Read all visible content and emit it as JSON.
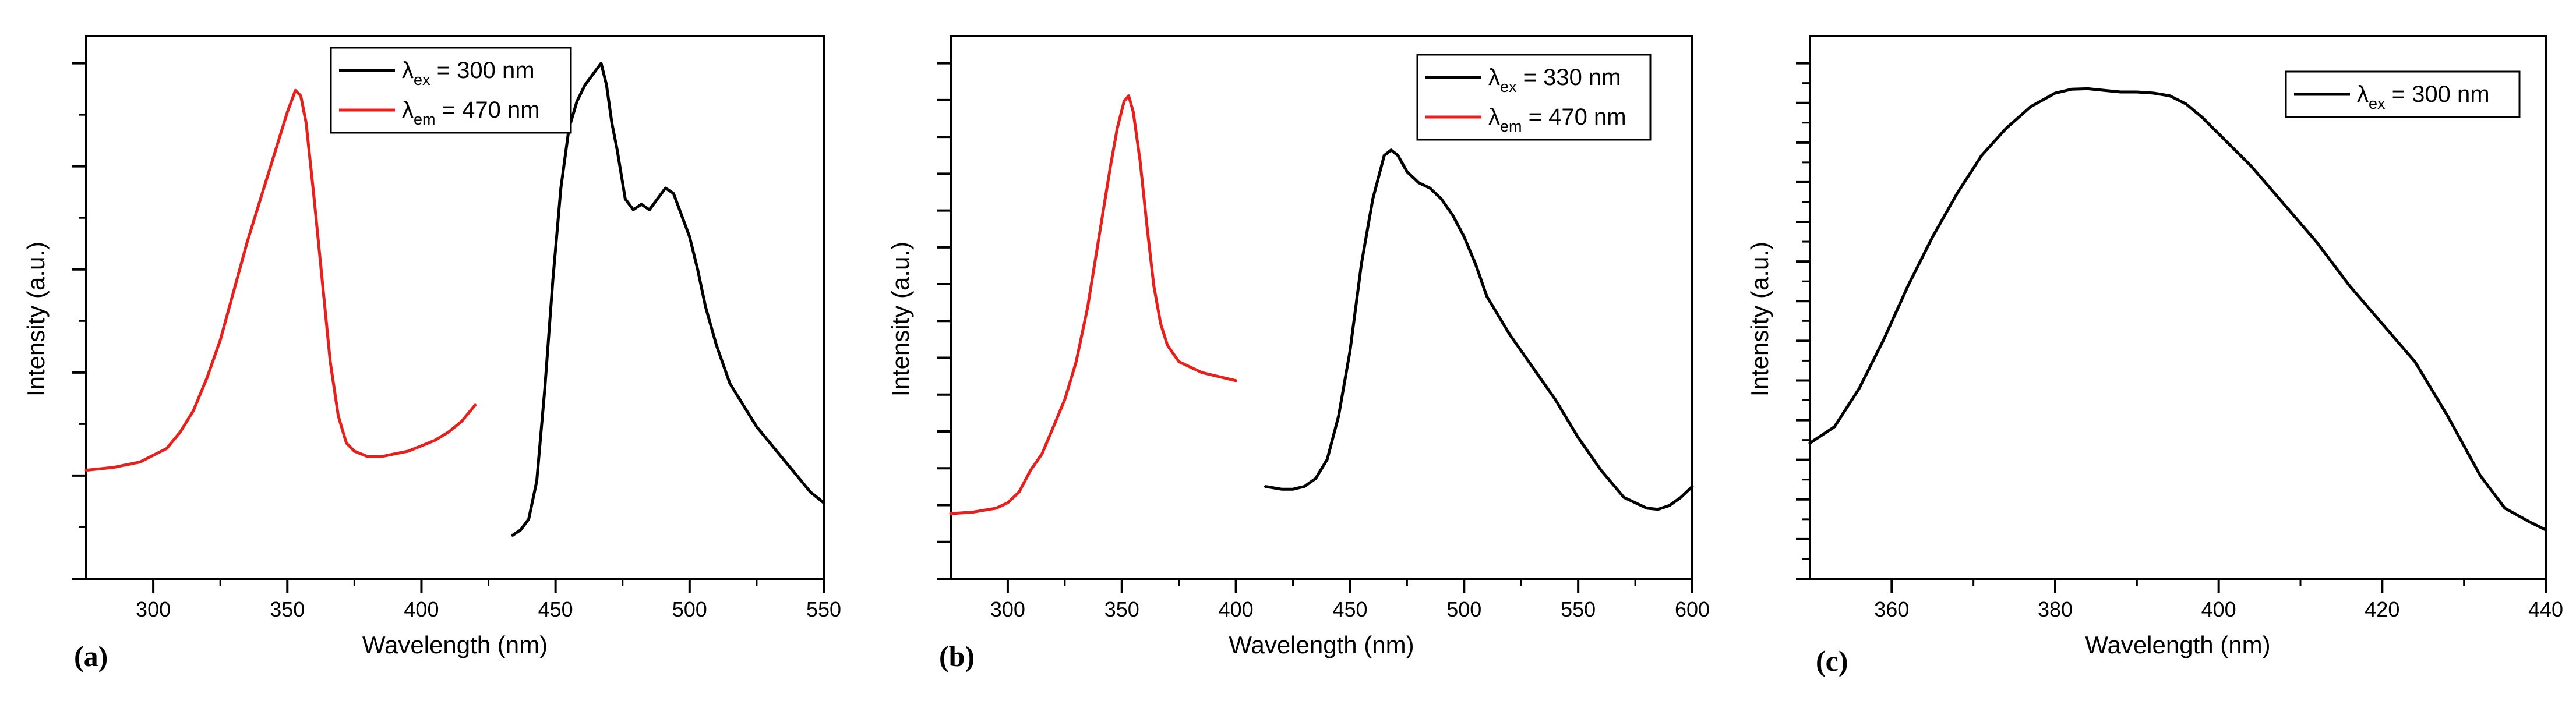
{
  "figure": {
    "panels": [
      "(a)",
      "(b)",
      "(c)"
    ]
  },
  "chart_data": [
    {
      "type": "line",
      "panel_label": "(a)",
      "title": "",
      "xlabel": "Wavelength (nm)",
      "ylabel": "Intensity (a.u.)",
      "xlim": [
        275,
        550
      ],
      "ylim": [
        0,
        100
      ],
      "xticks": [
        300,
        350,
        400,
        450,
        500,
        550
      ],
      "xtick_labels": [
        "300",
        "350",
        "400",
        "450",
        "500",
        "550"
      ],
      "y_tick_labels_shown": false,
      "grid": false,
      "legend": {
        "position": "top-center",
        "entries": [
          {
            "sym": "λ",
            "sub": "ex",
            "text": " = 300 nm",
            "color": "#000000"
          },
          {
            "sym": "λ",
            "sub": "em",
            "text": " = 470 nm",
            "color": "#e8201b"
          }
        ]
      },
      "series": [
        {
          "name": "λex = 300 nm",
          "color": "#000000",
          "x": [
            434,
            437,
            440,
            443,
            446,
            449,
            452,
            455,
            458,
            461,
            464,
            467,
            469,
            471,
            473,
            476,
            479,
            482,
            485,
            488,
            491,
            494,
            497,
            500,
            503,
            506,
            510,
            515,
            520,
            525,
            530,
            535,
            540,
            545,
            550
          ],
          "y": [
            8,
            9,
            11,
            18,
            35,
            55,
            72,
            83,
            88,
            91,
            93,
            95,
            91,
            84,
            79,
            70,
            68,
            69,
            68,
            70,
            72,
            71,
            67,
            63,
            57,
            50,
            43,
            36,
            32,
            28,
            25,
            22,
            19,
            16,
            14
          ]
        },
        {
          "name": "λem = 470 nm",
          "color": "#e8201b",
          "x": [
            275,
            285,
            295,
            305,
            310,
            315,
            320,
            325,
            330,
            335,
            340,
            345,
            350,
            353,
            355,
            357,
            360,
            363,
            366,
            369,
            372,
            375,
            380,
            385,
            390,
            395,
            400,
            405,
            410,
            415,
            420
          ],
          "y": [
            20,
            20.5,
            21.5,
            24,
            27,
            31,
            37,
            44,
            53,
            62,
            70,
            78,
            86,
            90,
            89,
            84,
            70,
            55,
            40,
            30,
            25,
            23.5,
            22.5,
            22.5,
            23,
            23.5,
            24.5,
            25.5,
            27,
            29,
            32
          ]
        }
      ]
    },
    {
      "type": "line",
      "panel_label": "(b)",
      "title": "",
      "xlabel": "Wavelength (nm)",
      "ylabel": "Intensity (a.u.)",
      "xlim": [
        275,
        600
      ],
      "ylim": [
        0,
        100
      ],
      "xticks": [
        300,
        350,
        400,
        450,
        500,
        550,
        600
      ],
      "xtick_labels": [
        "300",
        "350",
        "400",
        "450",
        "500",
        "550",
        "600"
      ],
      "y_tick_labels_shown": false,
      "grid": false,
      "legend": {
        "position": "top-right",
        "entries": [
          {
            "sym": "λ",
            "sub": "ex",
            "text": " = 330 nm",
            "color": "#000000"
          },
          {
            "sym": "λ",
            "sub": "em",
            "text": " = 470 nm",
            "color": "#e8201b"
          }
        ]
      },
      "series": [
        {
          "name": "λex = 330 nm",
          "color": "#000000",
          "x": [
            413,
            420,
            425,
            430,
            435,
            440,
            445,
            450,
            455,
            460,
            465,
            468,
            471,
            475,
            480,
            485,
            490,
            495,
            500,
            505,
            510,
            520,
            530,
            540,
            550,
            560,
            570,
            580,
            585,
            590,
            595,
            600
          ],
          "y": [
            17,
            16.5,
            16.5,
            17,
            18.5,
            22,
            30,
            42,
            58,
            70,
            78,
            79,
            78,
            75,
            73,
            72,
            70,
            67,
            63,
            58,
            52,
            45,
            39,
            33,
            26,
            20,
            15,
            13,
            12.8,
            13.5,
            15,
            17
          ]
        },
        {
          "name": "λem = 470 nm",
          "color": "#e8201b",
          "x": [
            275,
            285,
            295,
            300,
            305,
            310,
            315,
            320,
            325,
            330,
            335,
            340,
            345,
            348,
            351,
            353,
            355,
            358,
            361,
            364,
            367,
            370,
            375,
            380,
            385,
            390,
            395,
            400
          ],
          "y": [
            12,
            12.3,
            13,
            14,
            16,
            20,
            23,
            28,
            33,
            40,
            50,
            63,
            76,
            83,
            88,
            89,
            86,
            77,
            65,
            54,
            47,
            43,
            40,
            39,
            38,
            37.5,
            37,
            36.5
          ]
        }
      ]
    },
    {
      "type": "line",
      "panel_label": "(c)",
      "title": "",
      "xlabel": "Wavelength (nm)",
      "ylabel": "Intensity (a.u.)",
      "xlim": [
        350,
        440
      ],
      "ylim": [
        0,
        100
      ],
      "xticks": [
        360,
        380,
        400,
        420,
        440
      ],
      "xtick_labels": [
        "360",
        "380",
        "400",
        "420",
        "440"
      ],
      "y_tick_labels_shown": false,
      "grid": false,
      "legend": {
        "position": "top-right",
        "entries": [
          {
            "sym": "λ",
            "sub": "ex",
            "text": " = 300 nm",
            "color": "#000000"
          }
        ]
      },
      "series": [
        {
          "name": "λex = 300 nm",
          "color": "#000000",
          "x": [
            350,
            353,
            356,
            359,
            362,
            365,
            368,
            371,
            374,
            377,
            380,
            382,
            384,
            386,
            388,
            390,
            392,
            394,
            396,
            398,
            400,
            404,
            408,
            412,
            416,
            420,
            424,
            428,
            432,
            435,
            438,
            440
          ],
          "y": [
            25,
            28,
            35,
            44,
            54,
            63,
            71,
            78,
            83,
            87,
            89.5,
            90.2,
            90.3,
            90,
            89.7,
            89.7,
            89.5,
            89,
            87.5,
            85,
            82,
            76,
            69,
            62,
            54,
            47,
            40,
            30,
            19,
            13,
            10.5,
            9
          ]
        }
      ]
    }
  ]
}
